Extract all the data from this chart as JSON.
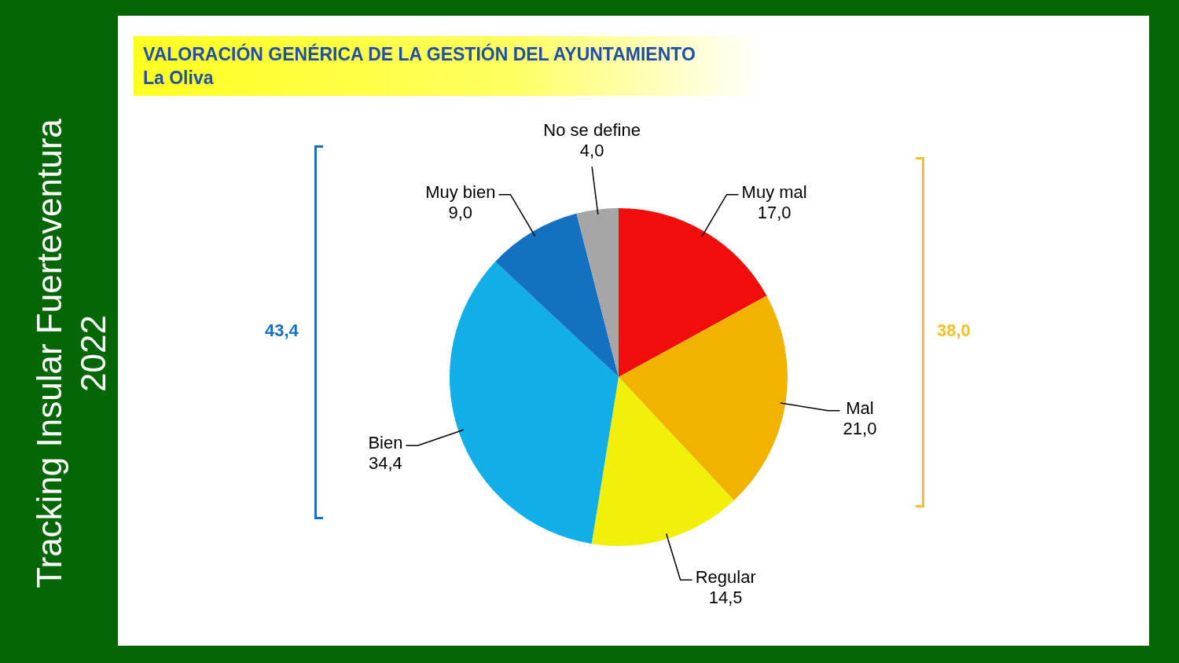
{
  "chart_data": {
    "type": "pie",
    "title": "VALORACIÓN GENÉRICA DE LA GESTIÓN DEL AYUNTAMIENTO",
    "subtitle": "La Oliva",
    "categories": [
      "Muy mal",
      "Mal",
      "Regular",
      "Bien",
      "Muy bien",
      "No se define"
    ],
    "values": [
      17.0,
      21.0,
      14.5,
      34.4,
      9.0,
      4.0
    ],
    "value_labels": [
      "17,0",
      "21,0",
      "14,5",
      "34,4",
      "9,0",
      "4,0"
    ],
    "colors": [
      "#f20d0d",
      "#f0b400",
      "#f0f00a",
      "#12aee8",
      "#1470c0",
      "#a6a6a6"
    ],
    "annotations": [
      "Tracking Insular Fuerteventura 2022",
      "43,4",
      "38,0"
    ],
    "legend": false
  }
}
